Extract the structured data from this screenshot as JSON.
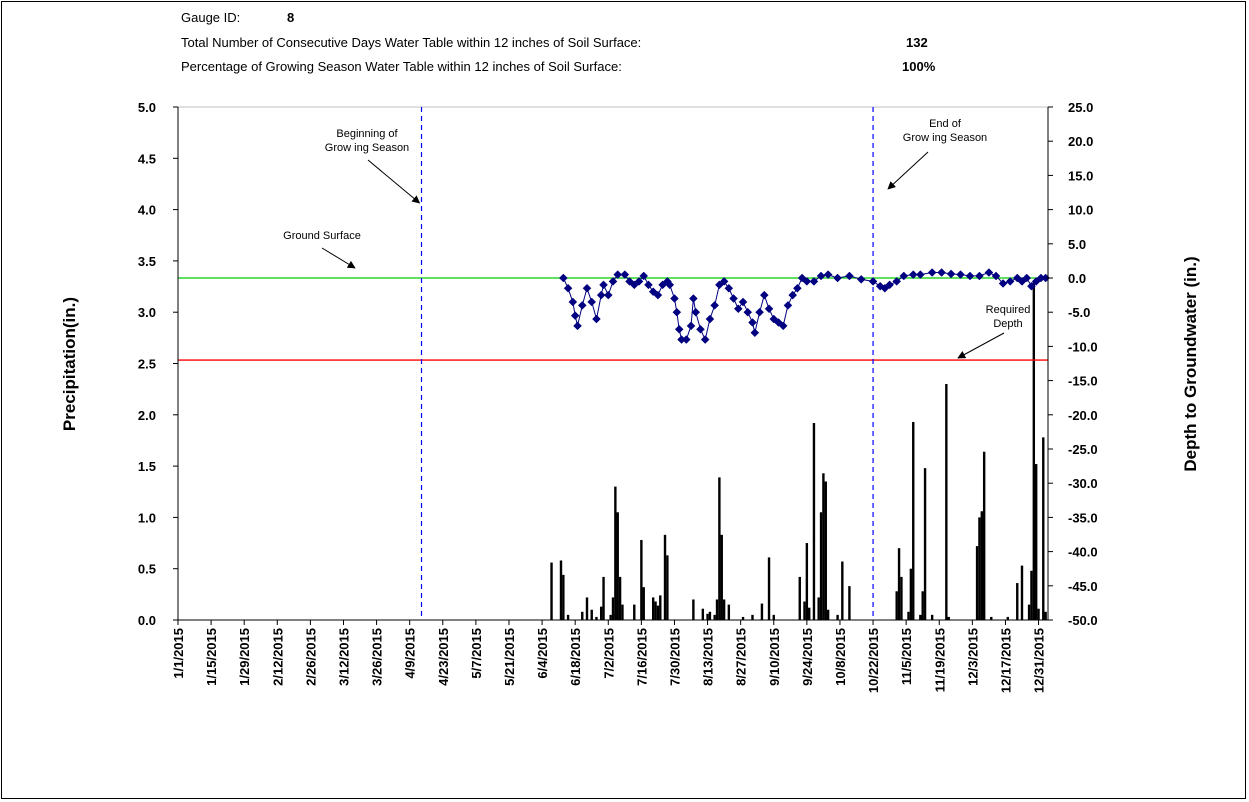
{
  "header": {
    "gauge_label": "Gauge ID:",
    "gauge_value": "8",
    "consecutive_label": "Total Number of Consecutive Days Water Table within 12 inches of Soil Surface:",
    "consecutive_value": "132",
    "percentage_label": "Percentage of Growing Season Water Table within 12 inches of Soil Surface:",
    "percentage_value": "100%"
  },
  "annotations": {
    "begin_line1": "Beginning of",
    "begin_line2": "Grow ing Season",
    "end_line1": "End of",
    "end_line2": "Grow ing Season",
    "ground": "Ground Surface",
    "req_line1": "Required",
    "req_line2": "Depth"
  },
  "colors": {
    "ground_line": "#00cc00",
    "required_line": "#ff0000",
    "season_line": "#0000ff",
    "groundwater": "#000080",
    "bars": "#000000"
  },
  "chart_data": {
    "type": "bar+line",
    "ylabel": "Precipitation(in.)",
    "y2label": "Depth to Groundwater (in.)",
    "ylim": [
      0,
      5.0
    ],
    "y2lim": [
      -50,
      25
    ],
    "yticks": [
      "0.0",
      "0.5",
      "1.0",
      "1.5",
      "2.0",
      "2.5",
      "3.0",
      "3.5",
      "4.0",
      "4.5",
      "5.0"
    ],
    "y2ticks": [
      "-50.0",
      "-45.0",
      "-40.0",
      "-35.0",
      "-30.0",
      "-25.0",
      "-20.0",
      "-15.0",
      "-10.0",
      "-5.0",
      "0.0",
      "5.0",
      "10.0",
      "15.0",
      "20.0",
      "25.0"
    ],
    "xticks": [
      "1/1/2015",
      "1/15/2015",
      "1/29/2015",
      "2/12/2015",
      "2/26/2015",
      "3/12/2015",
      "3/26/2015",
      "4/9/2015",
      "4/23/2015",
      "5/7/2015",
      "5/21/2015",
      "6/4/2015",
      "6/18/2015",
      "7/2/2015",
      "7/16/2015",
      "7/30/2015",
      "8/13/2015",
      "8/27/2015",
      "9/10/2015",
      "9/24/2015",
      "10/8/2015",
      "10/22/2015",
      "11/5/2015",
      "11/19/2015",
      "12/3/2015",
      "12/17/2015",
      "12/31/2015"
    ],
    "grid": false,
    "ground_surface_depth": 0,
    "required_depth": -12,
    "growing_season_start_day": 104,
    "growing_season_end_day": 295,
    "precipitation": [
      {
        "day": 159,
        "value": 0.56
      },
      {
        "day": 163,
        "value": 0.58
      },
      {
        "day": 164,
        "value": 0.44
      },
      {
        "day": 166,
        "value": 0.05
      },
      {
        "day": 172,
        "value": 0.08
      },
      {
        "day": 174,
        "value": 0.22
      },
      {
        "day": 176,
        "value": 0.1
      },
      {
        "day": 178,
        "value": 0.03
      },
      {
        "day": 180,
        "value": 0.13
      },
      {
        "day": 181,
        "value": 0.42
      },
      {
        "day": 184,
        "value": 0.05
      },
      {
        "day": 185,
        "value": 0.22
      },
      {
        "day": 186,
        "value": 1.3
      },
      {
        "day": 187,
        "value": 1.05
      },
      {
        "day": 188,
        "value": 0.42
      },
      {
        "day": 189,
        "value": 0.15
      },
      {
        "day": 194,
        "value": 0.15
      },
      {
        "day": 197,
        "value": 0.78
      },
      {
        "day": 198,
        "value": 0.32
      },
      {
        "day": 202,
        "value": 0.22
      },
      {
        "day": 203,
        "value": 0.18
      },
      {
        "day": 204,
        "value": 0.14
      },
      {
        "day": 205,
        "value": 0.24
      },
      {
        "day": 207,
        "value": 0.83
      },
      {
        "day": 208,
        "value": 0.63
      },
      {
        "day": 219,
        "value": 0.2
      },
      {
        "day": 223,
        "value": 0.11
      },
      {
        "day": 225,
        "value": 0.06
      },
      {
        "day": 226,
        "value": 0.08
      },
      {
        "day": 228,
        "value": 0.05
      },
      {
        "day": 229,
        "value": 0.2
      },
      {
        "day": 230,
        "value": 1.39
      },
      {
        "day": 231,
        "value": 0.83
      },
      {
        "day": 232,
        "value": 0.2
      },
      {
        "day": 234,
        "value": 0.15
      },
      {
        "day": 240,
        "value": 0.03
      },
      {
        "day": 244,
        "value": 0.05
      },
      {
        "day": 248,
        "value": 0.16
      },
      {
        "day": 251,
        "value": 0.61
      },
      {
        "day": 253,
        "value": 0.05
      },
      {
        "day": 264,
        "value": 0.42
      },
      {
        "day": 266,
        "value": 0.18
      },
      {
        "day": 267,
        "value": 0.75
      },
      {
        "day": 268,
        "value": 0.12
      },
      {
        "day": 270,
        "value": 1.92
      },
      {
        "day": 272,
        "value": 0.22
      },
      {
        "day": 273,
        "value": 1.05
      },
      {
        "day": 274,
        "value": 1.43
      },
      {
        "day": 275,
        "value": 1.35
      },
      {
        "day": 276,
        "value": 0.1
      },
      {
        "day": 280,
        "value": 0.05
      },
      {
        "day": 282,
        "value": 0.57
      },
      {
        "day": 285,
        "value": 0.33
      },
      {
        "day": 305,
        "value": 0.28
      },
      {
        "day": 306,
        "value": 0.7
      },
      {
        "day": 307,
        "value": 0.42
      },
      {
        "day": 310,
        "value": 0.08
      },
      {
        "day": 311,
        "value": 0.5
      },
      {
        "day": 312,
        "value": 1.93
      },
      {
        "day": 315,
        "value": 0.05
      },
      {
        "day": 316,
        "value": 0.28
      },
      {
        "day": 317,
        "value": 1.48
      },
      {
        "day": 320,
        "value": 0.05
      },
      {
        "day": 326,
        "value": 2.3
      },
      {
        "day": 327,
        "value": 0.03
      },
      {
        "day": 339,
        "value": 0.72
      },
      {
        "day": 340,
        "value": 1.0
      },
      {
        "day": 341,
        "value": 1.06
      },
      {
        "day": 342,
        "value": 1.64
      },
      {
        "day": 345,
        "value": 0.03
      },
      {
        "day": 352,
        "value": 0.03
      },
      {
        "day": 356,
        "value": 0.36
      },
      {
        "day": 358,
        "value": 0.53
      },
      {
        "day": 361,
        "value": 0.15
      },
      {
        "day": 362,
        "value": 0.48
      },
      {
        "day": 363,
        "value": 3.3
      },
      {
        "day": 364,
        "value": 1.52
      },
      {
        "day": 365,
        "value": 0.11
      },
      {
        "day": 367,
        "value": 1.78
      },
      {
        "day": 368,
        "value": 0.08
      }
    ],
    "groundwater": [
      {
        "day": 164,
        "value": 0.0
      },
      {
        "day": 166,
        "value": -1.5
      },
      {
        "day": 168,
        "value": -3.5
      },
      {
        "day": 169,
        "value": -5.5
      },
      {
        "day": 170,
        "value": -7.0
      },
      {
        "day": 172,
        "value": -4.0
      },
      {
        "day": 174,
        "value": -1.5
      },
      {
        "day": 176,
        "value": -3.5
      },
      {
        "day": 178,
        "value": -6.0
      },
      {
        "day": 180,
        "value": -2.5
      },
      {
        "day": 181,
        "value": -1.0
      },
      {
        "day": 183,
        "value": -2.5
      },
      {
        "day": 185,
        "value": -0.5
      },
      {
        "day": 187,
        "value": 0.5
      },
      {
        "day": 190,
        "value": 0.5
      },
      {
        "day": 192,
        "value": -0.5
      },
      {
        "day": 194,
        "value": -1.0
      },
      {
        "day": 196,
        "value": -0.5
      },
      {
        "day": 198,
        "value": 0.3
      },
      {
        "day": 200,
        "value": -1.0
      },
      {
        "day": 202,
        "value": -2.0
      },
      {
        "day": 204,
        "value": -2.5
      },
      {
        "day": 206,
        "value": -1.0
      },
      {
        "day": 208,
        "value": -0.5
      },
      {
        "day": 209,
        "value": -1.0
      },
      {
        "day": 211,
        "value": -3.0
      },
      {
        "day": 212,
        "value": -5.0
      },
      {
        "day": 213,
        "value": -7.5
      },
      {
        "day": 214,
        "value": -9.0
      },
      {
        "day": 216,
        "value": -9.0
      },
      {
        "day": 218,
        "value": -7.0
      },
      {
        "day": 219,
        "value": -3.0
      },
      {
        "day": 220,
        "value": -5.0
      },
      {
        "day": 222,
        "value": -7.5
      },
      {
        "day": 224,
        "value": -9.0
      },
      {
        "day": 226,
        "value": -6.0
      },
      {
        "day": 228,
        "value": -4.0
      },
      {
        "day": 230,
        "value": -1.0
      },
      {
        "day": 232,
        "value": -0.5
      },
      {
        "day": 234,
        "value": -1.5
      },
      {
        "day": 236,
        "value": -3.0
      },
      {
        "day": 238,
        "value": -4.5
      },
      {
        "day": 240,
        "value": -3.5
      },
      {
        "day": 242,
        "value": -5.0
      },
      {
        "day": 244,
        "value": -6.5
      },
      {
        "day": 245,
        "value": -8.0
      },
      {
        "day": 247,
        "value": -5.0
      },
      {
        "day": 249,
        "value": -2.5
      },
      {
        "day": 251,
        "value": -4.5
      },
      {
        "day": 253,
        "value": -6.0
      },
      {
        "day": 255,
        "value": -6.5
      },
      {
        "day": 257,
        "value": -7.0
      },
      {
        "day": 259,
        "value": -4.0
      },
      {
        "day": 261,
        "value": -2.5
      },
      {
        "day": 263,
        "value": -1.5
      },
      {
        "day": 265,
        "value": 0.0
      },
      {
        "day": 267,
        "value": -0.5
      },
      {
        "day": 270,
        "value": -0.5
      },
      {
        "day": 273,
        "value": 0.3
      },
      {
        "day": 276,
        "value": 0.5
      },
      {
        "day": 280,
        "value": 0.0
      },
      {
        "day": 285,
        "value": 0.3
      },
      {
        "day": 290,
        "value": -0.2
      },
      {
        "day": 295,
        "value": -0.5
      },
      {
        "day": 298,
        "value": -1.2
      },
      {
        "day": 300,
        "value": -1.5
      },
      {
        "day": 302,
        "value": -1.0
      },
      {
        "day": 305,
        "value": -0.5
      },
      {
        "day": 308,
        "value": 0.3
      },
      {
        "day": 312,
        "value": 0.5
      },
      {
        "day": 315,
        "value": 0.5
      },
      {
        "day": 320,
        "value": 0.8
      },
      {
        "day": 324,
        "value": 0.8
      },
      {
        "day": 328,
        "value": 0.6
      },
      {
        "day": 332,
        "value": 0.5
      },
      {
        "day": 336,
        "value": 0.3
      },
      {
        "day": 340,
        "value": 0.3
      },
      {
        "day": 344,
        "value": 0.8
      },
      {
        "day": 347,
        "value": 0.3
      },
      {
        "day": 350,
        "value": -0.8
      },
      {
        "day": 353,
        "value": -0.5
      },
      {
        "day": 356,
        "value": 0.0
      },
      {
        "day": 358,
        "value": -0.5
      },
      {
        "day": 360,
        "value": 0.0
      },
      {
        "day": 362,
        "value": -1.2
      },
      {
        "day": 364,
        "value": -0.5
      },
      {
        "day": 366,
        "value": 0.0
      },
      {
        "day": 368,
        "value": 0.0
      }
    ]
  }
}
